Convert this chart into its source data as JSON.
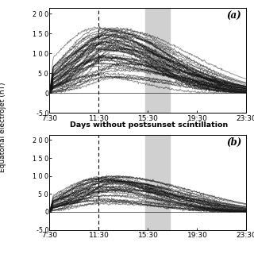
{
  "title_a": "(a)",
  "title_b": "(b)",
  "middle_label": "Days without postsunset scintillation",
  "ylabel": "Equatorial electrojet (nT)",
  "xtick_labels": [
    "7:30",
    "11:30",
    "15:30",
    "19:30",
    "23:30"
  ],
  "ytick_labels": [
    "2 0 0",
    "1 5 0",
    "1 0 0",
    "5 0",
    "0",
    "-5 0"
  ],
  "yticks": [
    200,
    150,
    100,
    50,
    0,
    -50
  ],
  "ylim": [
    -50,
    215
  ],
  "xlim": [
    7.5,
    23.5
  ],
  "xticks": [
    7.5,
    11.5,
    15.5,
    19.5,
    23.5
  ],
  "dashed_x": 11.5,
  "shade_x1": 15.3,
  "shade_x2": 17.3,
  "shade_color": "#d0d0d0",
  "line_color": "#111111",
  "line_alpha": 0.55,
  "line_width": 0.55,
  "n_curves_a": 55,
  "n_curves_b": 38,
  "background": "#ffffff",
  "seed_a": 42,
  "seed_b": 99
}
